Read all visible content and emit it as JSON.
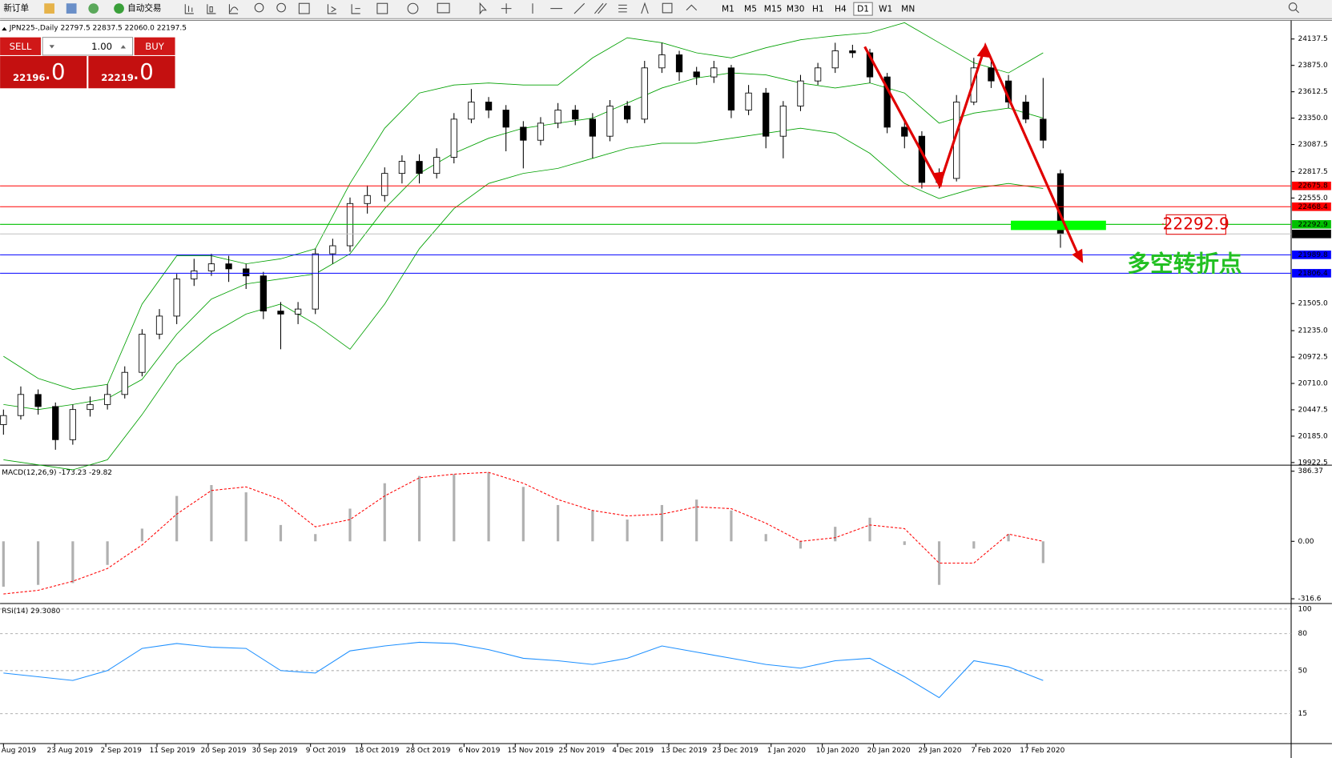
{
  "toolbar": {
    "new_order": "新订单",
    "auto_trading": "自动交易",
    "timeframes": [
      "M1",
      "M5",
      "M15",
      "M30",
      "H1",
      "H4",
      "D1",
      "W1",
      "MN"
    ],
    "active_timeframe": "D1"
  },
  "trade_panel": {
    "sell": "SELL",
    "buy": "BUY",
    "lots": "1.00",
    "bid_main": "22196",
    "bid_frac": ".0",
    "ask_main": "22219",
    "ask_frac": ".0"
  },
  "price_chart": {
    "header": "JPN225-,Daily  22797.5 22837.5 22060.0 22197.5",
    "ylim": [
      19905,
      24306
    ],
    "yticks": [
      24137.5,
      {
        "value": 23875,
        "label": "23875.0"
      },
      23612.5,
      {
        "value": 23350,
        "label": "23350.0"
      },
      23087.5,
      22817.5,
      {
        "value": 22555,
        "label": "22555.0"
      },
      {
        "value": 21505,
        "label": "21505.0"
      },
      {
        "value": 21235,
        "label": "21235.0"
      },
      20972.5,
      {
        "value": 20710,
        "label": "20710.0"
      },
      20447.5,
      {
        "value": 20185,
        "label": "20185.0"
      },
      19922.5
    ],
    "candles": [
      [
        20300,
        20450,
        20200,
        20390
      ],
      [
        20390,
        20680,
        20350,
        20600
      ],
      [
        20600,
        20650,
        20400,
        20480
      ],
      [
        20480,
        20520,
        20050,
        20150
      ],
      [
        20150,
        20500,
        20100,
        20450
      ],
      [
        20450,
        20580,
        20380,
        20500
      ],
      [
        20500,
        20700,
        20450,
        20600
      ],
      [
        20600,
        20880,
        20560,
        20820
      ],
      [
        20820,
        21250,
        20780,
        21200
      ],
      [
        21200,
        21450,
        21150,
        21380
      ],
      [
        21380,
        21800,
        21300,
        21750
      ],
      [
        21750,
        21950,
        21680,
        21830
      ],
      [
        21830,
        22000,
        21780,
        21900
      ],
      [
        21900,
        21980,
        21720,
        21850
      ],
      [
        21850,
        21900,
        21650,
        21780
      ],
      [
        21780,
        21820,
        21350,
        21430
      ],
      [
        21430,
        21520,
        21050,
        21400
      ],
      [
        21400,
        21520,
        21300,
        21450
      ],
      [
        21450,
        22050,
        21400,
        22000
      ],
      [
        22000,
        22150,
        21900,
        22080
      ],
      [
        22080,
        22560,
        22020,
        22500
      ],
      [
        22500,
        22680,
        22400,
        22580
      ],
      [
        22580,
        22860,
        22520,
        22800
      ],
      [
        22800,
        22980,
        22700,
        22920
      ],
      [
        22920,
        22990,
        22700,
        22800
      ],
      [
        22800,
        23050,
        22750,
        22960
      ],
      [
        22960,
        23400,
        22900,
        23340
      ],
      [
        23340,
        23640,
        23300,
        23510
      ],
      [
        23510,
        23560,
        23350,
        23430
      ],
      [
        23430,
        23480,
        23020,
        23260
      ],
      [
        23260,
        23320,
        22850,
        23130
      ],
      [
        23130,
        23360,
        23080,
        23300
      ],
      [
        23300,
        23500,
        23250,
        23430
      ],
      [
        23430,
        23480,
        23280,
        23340
      ],
      [
        23340,
        23400,
        22950,
        23170
      ],
      [
        23170,
        23530,
        23120,
        23470
      ],
      [
        23470,
        23520,
        23300,
        23340
      ],
      [
        23340,
        23920,
        23300,
        23850
      ],
      [
        23850,
        24100,
        23800,
        23980
      ],
      [
        23980,
        24020,
        23720,
        23810
      ],
      [
        23810,
        23860,
        23680,
        23760
      ],
      [
        23760,
        23920,
        23700,
        23850
      ],
      [
        23850,
        23880,
        23350,
        23430
      ],
      [
        23430,
        23680,
        23380,
        23600
      ],
      [
        23600,
        23650,
        23050,
        23170
      ],
      [
        23170,
        23520,
        22950,
        23470
      ],
      [
        23470,
        23780,
        23420,
        23720
      ],
      [
        23720,
        23900,
        23680,
        23850
      ],
      [
        23850,
        24100,
        23800,
        24020
      ],
      [
        24020,
        24080,
        23950,
        24000
      ],
      [
        24000,
        24040,
        23700,
        23760
      ],
      [
        23760,
        23800,
        23200,
        23260
      ],
      [
        23260,
        23320,
        23050,
        23170
      ],
      [
        23170,
        23220,
        22650,
        22710
      ],
      [
        22710,
        22850,
        22650,
        22750
      ],
      [
        22750,
        23580,
        22720,
        23510
      ],
      [
        23510,
        23950,
        23480,
        23850
      ],
      [
        23850,
        23930,
        23650,
        23720
      ],
      [
        23720,
        23780,
        23450,
        23510
      ],
      [
        23510,
        23580,
        23300,
        23340
      ],
      [
        23340,
        23750,
        23050,
        23130
      ],
      [
        22797.5,
        22837.5,
        22060,
        22197.5
      ]
    ],
    "bands": {
      "color": "#00a000",
      "upper": [
        20980,
        20760,
        20650,
        20700,
        21500,
        21980,
        21980,
        21900,
        21950,
        22050,
        22700,
        23250,
        23600,
        23680,
        23700,
        23680,
        23680,
        23950,
        24150,
        24100,
        24000,
        23950,
        24050,
        24130,
        24170,
        24200,
        24300,
        24100,
        23900,
        23800,
        24000
      ],
      "middle": [
        20500,
        20450,
        20500,
        20560,
        20750,
        21200,
        21550,
        21700,
        21750,
        21800,
        22000,
        22450,
        22800,
        23000,
        23150,
        23250,
        23300,
        23350,
        23500,
        23650,
        23750,
        23800,
        23780,
        23700,
        23650,
        23700,
        23600,
        23300,
        23400,
        23450,
        23350
      ],
      "lower": [
        19950,
        19900,
        19850,
        19950,
        20400,
        20900,
        21200,
        21400,
        21500,
        21300,
        21050,
        21500,
        22050,
        22450,
        22700,
        22800,
        22850,
        22950,
        23050,
        23100,
        23100,
        23150,
        23200,
        23250,
        23200,
        23000,
        22700,
        22550,
        22650,
        22700,
        22650
      ]
    },
    "levels": [
      {
        "value": 22675.8,
        "color": "#ff0000"
      },
      {
        "value": 22468.4,
        "color": "#ff0000"
      },
      {
        "value": 22292.9,
        "color": "#00c000"
      },
      {
        "value": 22197.5,
        "color": "#000000"
      },
      {
        "value": 21989.8,
        "color": "#0000ff"
      },
      {
        "value": 21806.4,
        "color": "#0000ff"
      }
    ],
    "annotation_price": "22292.9",
    "annotation_text": "多空转折点"
  },
  "macd": {
    "title": "MACD(12,26,9) -173.23 -29.82",
    "ylim": [
      -338,
      415
    ],
    "yticks": [
      386.37,
      {
        "value": 0,
        "label": "0.00"
      },
      -316.6
    ],
    "histogram_color": "#b0b0b0",
    "signal_color": "#ff0000",
    "histogram": [
      -250,
      -240,
      -230,
      -130,
      70,
      250,
      310,
      270,
      90,
      40,
      180,
      320,
      360,
      370,
      380,
      300,
      200,
      170,
      120,
      200,
      230,
      170,
      40,
      -40,
      80,
      130,
      -20,
      -240,
      -40,
      40,
      -120
    ],
    "signal": [
      -290,
      -270,
      -220,
      -150,
      -20,
      150,
      280,
      300,
      230,
      80,
      120,
      250,
      350,
      370,
      380,
      320,
      230,
      170,
      140,
      150,
      190,
      180,
      100,
      0,
      20,
      90,
      70,
      -120,
      -120,
      40,
      0
    ]
  },
  "rsi": {
    "title": "RSI(14) 29.3080",
    "ylim": [
      -8.6,
      103.8
    ],
    "yticks": [
      100,
      80,
      50,
      15
    ],
    "color": "#1e90ff",
    "values": [
      48,
      45,
      42,
      50,
      68,
      72,
      69,
      68,
      50,
      48,
      66,
      70,
      73,
      72,
      67,
      60,
      58,
      55,
      60,
      70,
      65,
      60,
      55,
      52,
      58,
      60,
      45,
      28,
      58,
      53,
      42
    ]
  },
  "dates": [
    "Aug 2019",
    "23 Aug 2019",
    "2 Sep 2019",
    "11 Sep 2019",
    "20 Sep 2019",
    "30 Sep 2019",
    "9 Oct 2019",
    "18 Oct 2019",
    "28 Oct 2019",
    "6 Nov 2019",
    "15 Nov 2019",
    "25 Nov 2019",
    "4 Dec 2019",
    "13 Dec 2019",
    "23 Dec 2019",
    "1 Jan 2020",
    "10 Jan 2020",
    "20 Jan 2020",
    "29 Jan 2020",
    "7 Feb 2020",
    "17 Feb 2020"
  ]
}
